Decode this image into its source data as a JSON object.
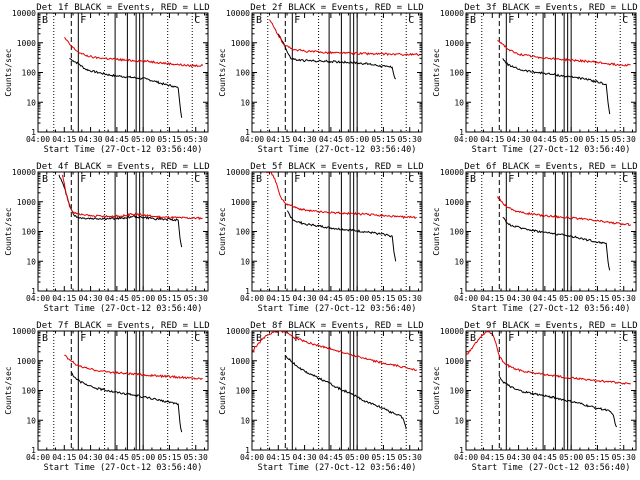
{
  "common": {
    "xlabel": "Start Time (27-Oct-12 03:56:40)",
    "ylabel": "Counts/sec",
    "x_tick_labels": [
      "04:00",
      "04:15",
      "04:30",
      "04:45",
      "05:00",
      "05:15",
      "05:30"
    ],
    "y_tick_labels": [
      "1",
      "10",
      "100",
      "1000",
      "10000"
    ],
    "letters": [
      "B",
      "F",
      "C"
    ],
    "colors": {
      "events": "#000000",
      "lld": "#e00000"
    }
  },
  "chart_data": [
    {
      "type": "line",
      "title": "Det 1f BLACK = Events, RED = LLD",
      "x_unit": "minutes after 04:00",
      "xlim": [
        0,
        97
      ],
      "ylim": [
        1,
        10000
      ],
      "yscale": "log",
      "vlines_dotted": [
        9,
        38,
        74,
        88
      ],
      "vlines_dashed": [
        19
      ],
      "vlines_solid": [
        23,
        44,
        51,
        56,
        58,
        60
      ],
      "series": [
        {
          "name": "Events",
          "color": "#000000",
          "x": [
            18,
            20,
            23,
            27,
            31,
            36,
            42,
            47,
            52,
            57,
            62,
            67,
            72,
            77,
            80,
            81,
            82
          ],
          "y": [
            300,
            250,
            200,
            130,
            110,
            95,
            80,
            75,
            70,
            65,
            60,
            50,
            40,
            35,
            30,
            8,
            3
          ]
        },
        {
          "name": "LLD",
          "color": "#e00000",
          "x": [
            15,
            18,
            21,
            24,
            27,
            32,
            38,
            44,
            50,
            56,
            62,
            68,
            74,
            80,
            86,
            94
          ],
          "y": [
            1500,
            900,
            600,
            450,
            380,
            320,
            300,
            280,
            260,
            250,
            240,
            220,
            200,
            185,
            170,
            170
          ]
        }
      ]
    },
    {
      "type": "line",
      "title": "Det 2f BLACK = Events, RED = LLD",
      "x_unit": "minutes after 04:00",
      "xlim": [
        0,
        97
      ],
      "ylim": [
        1,
        10000
      ],
      "yscale": "log",
      "vlines_dotted": [
        9,
        38,
        74,
        88
      ],
      "vlines_dashed": [
        19
      ],
      "vlines_solid": [
        23,
        44,
        51,
        56,
        58,
        60
      ],
      "series": [
        {
          "name": "Events",
          "color": "#000000",
          "x": [
            15,
            18,
            20,
            22,
            26,
            32,
            40,
            48,
            56,
            64,
            70,
            76,
            80,
            81,
            82
          ],
          "y": [
            2000,
            1000,
            500,
            300,
            260,
            250,
            240,
            230,
            220,
            200,
            180,
            160,
            150,
            80,
            60
          ]
        },
        {
          "name": "LLD",
          "color": "#e00000",
          "x": [
            10,
            15,
            18,
            21,
            24,
            30,
            40,
            50,
            60,
            70,
            80,
            90,
            96
          ],
          "y": [
            6000,
            1800,
            900,
            700,
            600,
            520,
            480,
            450,
            440,
            420,
            410,
            400,
            400
          ]
        }
      ]
    },
    {
      "type": "line",
      "title": "Det 3f BLACK = Events, RED = LLD",
      "x_unit": "minutes after 04:00",
      "xlim": [
        0,
        97
      ],
      "ylim": [
        1,
        10000
      ],
      "yscale": "log",
      "vlines_dotted": [
        9,
        38,
        74,
        88
      ],
      "vlines_dashed": [
        19
      ],
      "vlines_solid": [
        23,
        44,
        51,
        56,
        58,
        60
      ],
      "series": [
        {
          "name": "Events",
          "color": "#000000",
          "x": [
            21,
            23,
            27,
            32,
            38,
            44,
            50,
            56,
            62,
            68,
            74,
            80,
            81,
            82
          ],
          "y": [
            300,
            200,
            150,
            120,
            105,
            95,
            85,
            75,
            70,
            60,
            50,
            40,
            10,
            4
          ]
        },
        {
          "name": "LLD",
          "color": "#e00000",
          "x": [
            18,
            21,
            24,
            28,
            33,
            40,
            48,
            56,
            64,
            72,
            80,
            88,
            94
          ],
          "y": [
            1200,
            900,
            600,
            450,
            380,
            330,
            300,
            270,
            250,
            230,
            200,
            180,
            180
          ]
        }
      ]
    },
    {
      "type": "line",
      "title": "Det 4f BLACK = Events, RED = LLD",
      "x_unit": "minutes after 04:00",
      "xlim": [
        0,
        97
      ],
      "ylim": [
        1,
        10000
      ],
      "yscale": "log",
      "vlines_dotted": [
        9,
        38,
        74,
        88
      ],
      "vlines_dashed": [
        19
      ],
      "vlines_solid": [
        23,
        44,
        51,
        56,
        58,
        60
      ],
      "series": [
        {
          "name": "Events",
          "color": "#000000",
          "x": [
            12,
            15,
            18,
            20,
            22,
            26,
            32,
            40,
            48,
            54,
            60,
            66,
            72,
            78,
            80,
            81,
            82
          ],
          "y": [
            8000,
            3000,
            800,
            400,
            300,
            280,
            270,
            270,
            280,
            320,
            300,
            270,
            260,
            250,
            240,
            60,
            30
          ]
        },
        {
          "name": "LLD",
          "color": "#e00000",
          "x": [
            14,
            16,
            18,
            20,
            23,
            27,
            32,
            40,
            48,
            54,
            60,
            66,
            72,
            80,
            88,
            94
          ],
          "y": [
            8000,
            2000,
            700,
            450,
            380,
            350,
            330,
            320,
            330,
            380,
            360,
            320,
            300,
            290,
            280,
            280
          ]
        }
      ]
    },
    {
      "type": "line",
      "title": "Det 5f BLACK = Events, RED = LLD",
      "x_unit": "minutes after 04:00",
      "xlim": [
        0,
        97
      ],
      "ylim": [
        1,
        10000
      ],
      "yscale": "log",
      "vlines_dotted": [
        9,
        38,
        74,
        88
      ],
      "vlines_dashed": [
        19
      ],
      "vlines_solid": [
        23,
        44,
        51,
        56,
        58,
        60
      ],
      "series": [
        {
          "name": "Events",
          "color": "#000000",
          "x": [
            20,
            22,
            25,
            30,
            36,
            42,
            48,
            54,
            60,
            66,
            72,
            78,
            80,
            81,
            82
          ],
          "y": [
            500,
            300,
            220,
            180,
            160,
            140,
            125,
            115,
            105,
            95,
            85,
            75,
            70,
            20,
            10
          ]
        },
        {
          "name": "LLD",
          "color": "#e00000",
          "x": [
            8,
            11,
            13,
            15,
            17,
            19,
            22,
            26,
            32,
            40,
            48,
            56,
            64,
            72,
            80,
            88,
            94
          ],
          "y": [
            10000,
            9500,
            6000,
            2500,
            1200,
            900,
            750,
            600,
            500,
            450,
            420,
            400,
            380,
            350,
            320,
            300,
            300
          ]
        }
      ]
    },
    {
      "type": "line",
      "title": "Det 6f BLACK = Events, RED = LLD",
      "x_unit": "minutes after 04:00",
      "xlim": [
        0,
        97
      ],
      "ylim": [
        1,
        10000
      ],
      "yscale": "log",
      "vlines_dotted": [
        9,
        38,
        74,
        88
      ],
      "vlines_dashed": [
        19
      ],
      "vlines_solid": [
        23,
        44,
        51,
        56,
        58,
        60
      ],
      "series": [
        {
          "name": "Events",
          "color": "#000000",
          "x": [
            21,
            23,
            27,
            32,
            38,
            44,
            50,
            56,
            62,
            68,
            74,
            80,
            81,
            82
          ],
          "y": [
            300,
            200,
            150,
            130,
            110,
            95,
            85,
            75,
            65,
            55,
            45,
            40,
            10,
            5
          ]
        },
        {
          "name": "LLD",
          "color": "#e00000",
          "x": [
            18,
            21,
            24,
            28,
            33,
            40,
            48,
            56,
            64,
            72,
            80,
            88,
            94
          ],
          "y": [
            1500,
            900,
            650,
            500,
            420,
            370,
            330,
            300,
            270,
            240,
            210,
            180,
            170
          ]
        }
      ]
    },
    {
      "type": "line",
      "title": "Det 7f BLACK = Events, RED = LLD",
      "x_unit": "minutes after 04:00",
      "xlim": [
        0,
        97
      ],
      "ylim": [
        1,
        10000
      ],
      "yscale": "log",
      "vlines_dotted": [
        9,
        38,
        74,
        88
      ],
      "vlines_dashed": [
        19
      ],
      "vlines_solid": [
        23,
        44,
        51,
        56,
        58,
        60
      ],
      "series": [
        {
          "name": "Events",
          "color": "#000000",
          "x": [
            19,
            21,
            24,
            28,
            33,
            40,
            46,
            52,
            58,
            64,
            70,
            76,
            80,
            81,
            82
          ],
          "y": [
            400,
            280,
            200,
            150,
            120,
            100,
            85,
            75,
            65,
            55,
            45,
            40,
            35,
            8,
            4
          ]
        },
        {
          "name": "LLD",
          "color": "#e00000",
          "x": [
            15,
            18,
            21,
            24,
            28,
            33,
            40,
            48,
            56,
            64,
            72,
            80,
            88,
            94
          ],
          "y": [
            1500,
            1100,
            800,
            650,
            550,
            480,
            420,
            380,
            350,
            320,
            300,
            280,
            260,
            250
          ]
        }
      ]
    },
    {
      "type": "line",
      "title": "Det 8f BLACK = Events, RED = LLD",
      "x_unit": "minutes after 04:00",
      "xlim": [
        0,
        97
      ],
      "ylim": [
        1,
        10000
      ],
      "yscale": "log",
      "vlines_dotted": [
        9,
        38,
        74,
        88
      ],
      "vlines_dashed": [
        19
      ],
      "vlines_solid": [
        23,
        44,
        51,
        56,
        58,
        60
      ],
      "series": [
        {
          "name": "Events",
          "color": "#000000",
          "x": [
            19,
            22,
            25,
            30,
            36,
            42,
            48,
            54,
            60,
            66,
            72,
            78,
            84,
            86,
            87,
            88
          ],
          "y": [
            1500,
            1000,
            700,
            450,
            300,
            200,
            130,
            90,
            60,
            40,
            30,
            20,
            15,
            12,
            8,
            5
          ]
        },
        {
          "name": "LLD",
          "color": "#e00000",
          "x": [
            0,
            4,
            8,
            12,
            16,
            20,
            24,
            30,
            36,
            42,
            48,
            54,
            60,
            66,
            72,
            78,
            84,
            90,
            94
          ],
          "y": [
            2000,
            4000,
            7000,
            9000,
            10000,
            9000,
            6000,
            4500,
            3500,
            2800,
            2200,
            1800,
            1400,
            1100,
            900,
            750,
            650,
            550,
            500
          ]
        }
      ]
    },
    {
      "type": "line",
      "title": "Det 9f BLACK = Events, RED = LLD",
      "x_unit": "minutes after 04:00",
      "xlim": [
        0,
        97
      ],
      "ylim": [
        1,
        10000
      ],
      "yscale": "log",
      "vlines_dotted": [
        9,
        38,
        74,
        88
      ],
      "vlines_dashed": [
        19
      ],
      "vlines_solid": [
        23,
        44,
        51,
        56,
        58,
        60
      ],
      "series": [
        {
          "name": "Events",
          "color": "#000000",
          "x": [
            19,
            21,
            24,
            28,
            33,
            40,
            46,
            52,
            58,
            64,
            70,
            76,
            82,
            84,
            85,
            86
          ],
          "y": [
            300,
            200,
            150,
            110,
            90,
            75,
            65,
            55,
            45,
            38,
            30,
            25,
            20,
            15,
            8,
            6
          ]
        },
        {
          "name": "LLD",
          "color": "#e00000",
          "x": [
            0,
            4,
            8,
            11,
            13,
            15,
            17,
            19,
            22,
            26,
            32,
            40,
            48,
            56,
            64,
            72,
            80,
            88,
            94
          ],
          "y": [
            1500,
            3000,
            6000,
            9000,
            9500,
            8000,
            4000,
            1500,
            800,
            600,
            450,
            380,
            320,
            280,
            250,
            220,
            200,
            180,
            170
          ]
        }
      ]
    }
  ]
}
